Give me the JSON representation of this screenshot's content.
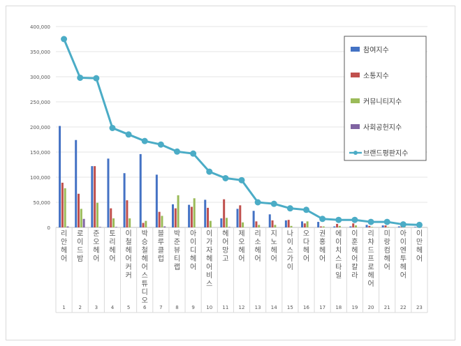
{
  "chart_data": {
    "type": "bar",
    "categories": [
      "리안헤어",
      "로이드밤",
      "준오헤어",
      "토리헤어",
      "이철헤어커커",
      "박승철헤어스튜디오",
      "블루클럽",
      "박준뷰티랩",
      "아이디헤어",
      "이가자헤어비스",
      "헤어망고",
      "제오헤어",
      "리소헤어",
      "지노헤어",
      "나이스가이",
      "오다헤어",
      "권홍헤어",
      "에이치스타일",
      "이훈헤어칼라",
      "리챠드프로헤어",
      "미랑컴헤어",
      "아이엔투헤어",
      "이만헤어"
    ],
    "ranks": [
      "1",
      "2",
      "3",
      "4",
      "5",
      "6",
      "7",
      "8",
      "9",
      "10",
      "11",
      "12",
      "13",
      "14",
      "15",
      "16",
      "17",
      "18",
      "19",
      "20",
      "21",
      "22",
      "23"
    ],
    "series": [
      {
        "name": "참여지수",
        "type": "bar",
        "color": "#4472c4",
        "values": [
          202000,
          174000,
          122000,
          137000,
          108000,
          146000,
          105000,
          46000,
          45000,
          55000,
          18000,
          37000,
          33000,
          26000,
          14000,
          12000,
          11000,
          2000,
          2000,
          5000,
          4000,
          2000,
          1000
        ]
      },
      {
        "name": "소통지수",
        "type": "bar",
        "color": "#c0504d",
        "values": [
          89000,
          67000,
          122000,
          38000,
          54000,
          9000,
          31000,
          38000,
          41000,
          39000,
          56000,
          44000,
          12000,
          14000,
          15000,
          8000,
          2000,
          7000,
          8000,
          3000,
          4000,
          2000,
          1000
        ]
      },
      {
        "name": "커뮤니티지수",
        "type": "bar",
        "color": "#9bbb59",
        "values": [
          78000,
          37000,
          49000,
          18000,
          18000,
          13000,
          23000,
          64000,
          58000,
          13000,
          19000,
          10000,
          5000,
          5000,
          3000,
          12000,
          2000,
          3000,
          4000,
          1000,
          1000,
          2000,
          2000
        ]
      },
      {
        "name": "사회공헌지수",
        "type": "bar",
        "color": "#8064a2",
        "values": [
          2000,
          17000,
          1000,
          1000,
          0,
          0,
          2000,
          0,
          0,
          0,
          1000,
          0,
          0,
          0,
          0,
          0,
          0,
          0,
          0,
          0,
          0,
          0,
          0
        ]
      },
      {
        "name": "브랜드평판지수",
        "type": "line",
        "color": "#4bacc6",
        "values": [
          375000,
          298000,
          297000,
          198000,
          185000,
          172000,
          165000,
          151000,
          147000,
          111000,
          98000,
          94000,
          50000,
          47000,
          38000,
          35000,
          17000,
          15000,
          15000,
          11000,
          11000,
          6000,
          5000
        ]
      }
    ],
    "yticks": [
      "0",
      "50,000",
      "100,000",
      "150,000",
      "200,000",
      "250,000",
      "300,000",
      "350,000",
      "400,000"
    ],
    "ylim": [
      0,
      400000
    ],
    "grid": true,
    "legend": "top-right"
  }
}
